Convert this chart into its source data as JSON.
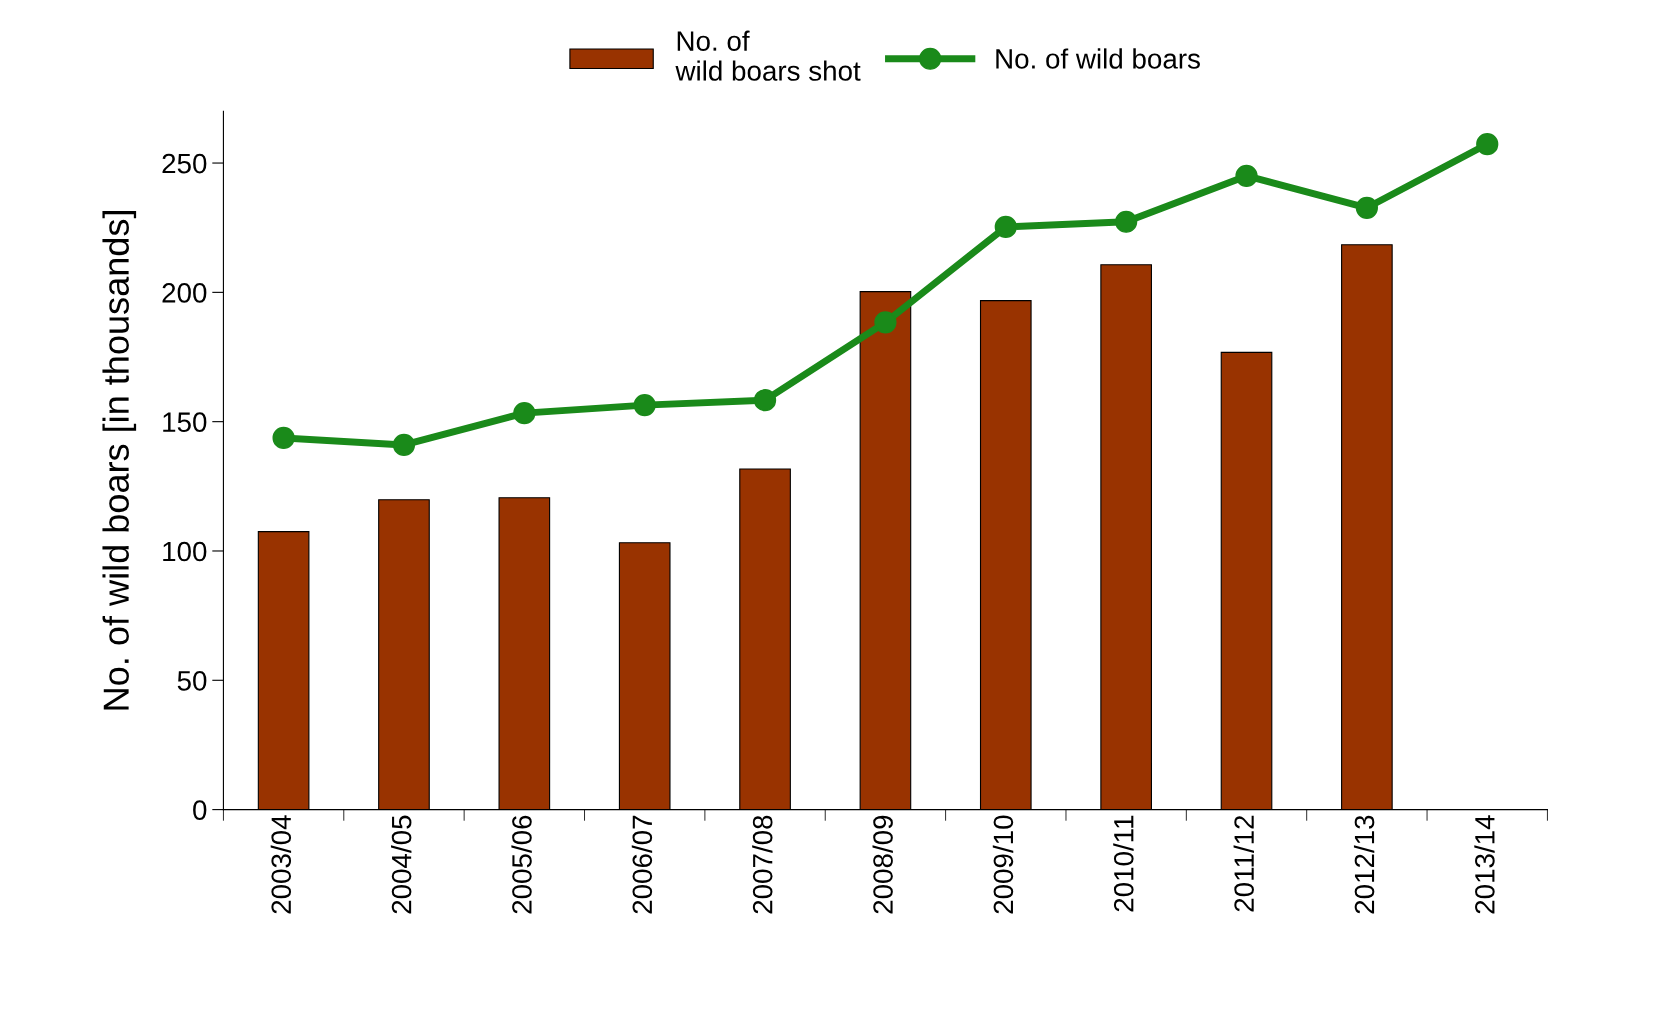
{
  "chart_data": {
    "type": "bar",
    "ylabel": "No. of wild boars [in thousands]",
    "categories": [
      "2003/04",
      "2004/05",
      "2005/06",
      "2006/07",
      "2007/08",
      "2008/09",
      "2009/10",
      "2010/11",
      "2011/12",
      "2012/13",
      "2013/14"
    ],
    "series": [
      {
        "name": "No. of\nwild boars shot",
        "color": "#993300",
        "values": [
          107.5,
          119.8,
          120.6,
          103.2,
          131.7,
          200.3,
          196.8,
          210.7,
          176.8,
          218.4,
          null
        ]
      },
      {
        "name": "No. of wild boars",
        "type": "line",
        "color": "#1a8a1a",
        "marker": "circle",
        "values": [
          143.7,
          141,
          153.3,
          156.4,
          158.3,
          188.4,
          225.3,
          227.3,
          245,
          232.7,
          257.3
        ]
      }
    ],
    "ylim": [
      0,
      270
    ],
    "yticks": [
      0,
      50,
      100,
      150,
      200,
      250
    ],
    "grid": false,
    "legend": "top"
  }
}
